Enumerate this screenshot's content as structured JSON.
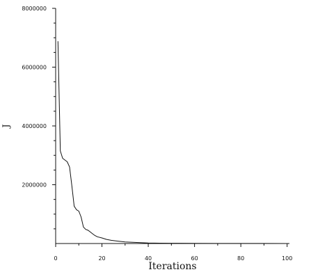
{
  "chart_data": {
    "type": "line",
    "title": "",
    "xlabel": "Iterations",
    "ylabel": "J",
    "xlim": [
      0,
      101
    ],
    "ylim": [
      0,
      8000000
    ],
    "x_ticks": [
      0,
      20,
      40,
      60,
      80,
      100
    ],
    "x_tick_labels": [
      "0",
      "20",
      "40",
      "60",
      "80",
      "100"
    ],
    "y_ticks": [
      2000000,
      4000000,
      6000000,
      8000000
    ],
    "y_tick_labels": [
      "2000000",
      "4000000",
      "6000000",
      "8000000"
    ],
    "grid": false,
    "legend": "none",
    "series": [
      {
        "x": [
          1,
          2,
          3,
          4,
          5,
          6,
          7,
          8,
          9,
          10,
          11,
          12,
          13,
          14,
          15,
          16,
          17,
          18,
          20,
          22,
          24,
          26,
          28,
          30,
          35,
          40,
          45,
          50,
          60,
          70,
          80,
          90,
          100
        ],
        "y": [
          6880000,
          3150000,
          2900000,
          2840000,
          2780000,
          2600000,
          1960000,
          1270000,
          1150000,
          1100000,
          900000,
          560000,
          480000,
          450000,
          390000,
          330000,
          270000,
          230000,
          190000,
          140000,
          110000,
          90000,
          70000,
          55000,
          35000,
          20000,
          13000,
          9000,
          5000,
          3000,
          2000,
          1500,
          1000
        ],
        "color": "#111111"
      }
    ]
  }
}
